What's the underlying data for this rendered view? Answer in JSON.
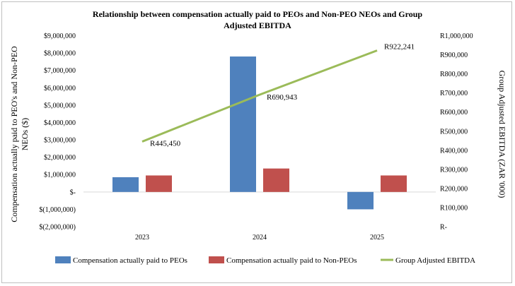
{
  "chart_data": {
    "type": "bar",
    "title_line1": "Relationship between compensation actually paid to PEOs and Non-PEO NEOs and Group",
    "title_line2": "Adjusted EBITDA",
    "categories": [
      "2023",
      "2024",
      "2025"
    ],
    "series": [
      {
        "name": "Compensation actually paid to PEOs",
        "axis": "left",
        "color": "#4f81bd",
        "values": [
          850000,
          7800000,
          -1000000
        ]
      },
      {
        "name": "Compensation actually paid to Non-PEOs",
        "axis": "left",
        "color": "#c0504d",
        "values": [
          950000,
          1350000,
          950000
        ]
      },
      {
        "name": "Group Adjusted EBITDA",
        "type": "line",
        "axis": "right",
        "color": "#9bbb59",
        "values": [
          445450,
          690943,
          922241
        ]
      }
    ],
    "data_labels": [
      "R445,450",
      "R690,943",
      "R922,241"
    ],
    "ylabel_left_line1": "Compensation actually paid to PEO's and Non-PEO",
    "ylabel_left_line2": "NEOs ($)",
    "ylabel_right": "Group Adjusted EBITDA (ZAR '000)",
    "ylim_left": [
      -2000000,
      9000000
    ],
    "ylim_right": [
      0,
      1000000
    ],
    "yticks_left": [
      "$(2,000,000)",
      "$(1,000,000)",
      "$-",
      "$1,000,000",
      "$2,000,000",
      "$3,000,000",
      "$4,000,000",
      "$5,000,000",
      "$6,000,000",
      "$7,000,000",
      "$8,000,000",
      "$9,000,000"
    ],
    "yticks_right": [
      "R-",
      "R100,000",
      "R200,000",
      "R300,000",
      "R400,000",
      "R500,000",
      "R600,000",
      "R700,000",
      "R800,000",
      "R900,000",
      "R1,000,000"
    ],
    "legend_position": "bottom",
    "grid": false
  }
}
